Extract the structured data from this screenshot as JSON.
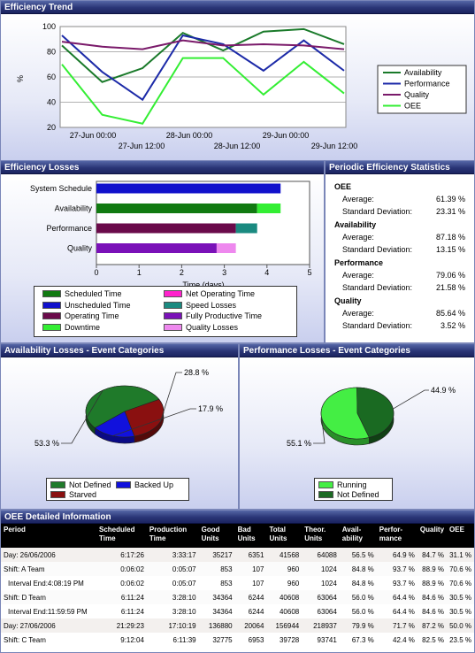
{
  "trend": {
    "title": "Efficiency Trend",
    "ylabel": "%",
    "yticks": [
      "100",
      "80",
      "60",
      "40",
      "20"
    ],
    "xticks_top": [
      "27-Jun 00:00",
      "28-Jun 00:00",
      "29-Jun 00:00"
    ],
    "xticks_bottom": [
      "27-Jun 12:00",
      "28-Jun 12:00",
      "29-Jun 12:00"
    ],
    "legend": [
      "Availability",
      "Performance",
      "Quality",
      "OEE"
    ],
    "chart_data": {
      "type": "line",
      "ylim": [
        20,
        100
      ],
      "x": [
        0,
        1,
        2,
        3,
        4,
        5,
        6,
        7
      ],
      "series": [
        {
          "name": "Availability",
          "color": "#1a7a2a",
          "values": [
            85,
            56,
            67,
            95,
            81,
            96,
            98,
            86
          ]
        },
        {
          "name": "Performance",
          "color": "#1c2aa8",
          "values": [
            93,
            64,
            42,
            93,
            86,
            65,
            89,
            65
          ]
        },
        {
          "name": "Quality",
          "color": "#7a1a6a",
          "values": [
            88,
            84,
            82,
            89,
            85,
            86,
            85,
            82
          ]
        },
        {
          "name": "OEE",
          "color": "#33ee33",
          "values": [
            70,
            30,
            23,
            75,
            75,
            46,
            72,
            47
          ]
        }
      ]
    }
  },
  "losses": {
    "title": "Efficiency Losses",
    "categories": [
      "System Schedule",
      "Availability",
      "Performance",
      "Quality"
    ],
    "xticks": [
      "0",
      "1",
      "2",
      "3",
      "4",
      "5"
    ],
    "xlabel": "Time (days)",
    "chart_data": {
      "type": "bar",
      "xlim": [
        0,
        5
      ],
      "stacks": [
        {
          "category": "System Schedule",
          "segments": [
            {
              "name": "Unscheduled Time",
              "value": 4.32
            }
          ]
        },
        {
          "category": "Availability",
          "segments": [
            {
              "name": "Scheduled Time",
              "value": 3.77
            },
            {
              "name": "Downtime",
              "value": 0.55
            }
          ]
        },
        {
          "category": "Performance",
          "segments": [
            {
              "name": "Operating Time",
              "value": 3.27
            },
            {
              "name": "Speed Losses",
              "value": 0.5
            }
          ]
        },
        {
          "category": "Quality",
          "segments": [
            {
              "name": "Fully Productive Time",
              "value": 2.82
            },
            {
              "name": "Quality Losses",
              "value": 0.45
            }
          ]
        }
      ]
    },
    "legend": [
      {
        "label": "Scheduled Time",
        "color": "#117a11"
      },
      {
        "label": "Net Operating Time",
        "color": "#ff22cc"
      },
      {
        "label": "Unscheduled Time",
        "color": "#1111cc"
      },
      {
        "label": "Speed Losses",
        "color": "#1a8a80"
      },
      {
        "label": "Operating Time",
        "color": "#6a0a4a"
      },
      {
        "label": "Fully Productive Time",
        "color": "#7a11b8"
      },
      {
        "label": "Downtime",
        "color": "#33ee33"
      },
      {
        "label": "Quality Losses",
        "color": "#ee88ee"
      }
    ]
  },
  "stats": {
    "title": "Periodic Efficiency Statistics",
    "sections": [
      {
        "name": "OEE",
        "avg_label": "Average:",
        "avg": "61.39 %",
        "sd_label": "Standard Deviation:",
        "sd": "23.31 %"
      },
      {
        "name": "Availability",
        "avg_label": "Average:",
        "avg": "87.18 %",
        "sd_label": "Standard Deviation:",
        "sd": "13.15 %"
      },
      {
        "name": "Performance",
        "avg_label": "Average:",
        "avg": "79.06 %",
        "sd_label": "Standard Deviation:",
        "sd": "21.58 %"
      },
      {
        "name": "Quality",
        "avg_label": "Average:",
        "avg": "85.64 %",
        "sd_label": "Standard Deviation:",
        "sd": "3.52 %"
      }
    ]
  },
  "avail_pie": {
    "title": "Availability Losses - Event Categories",
    "chart_data": {
      "type": "pie",
      "slices": [
        {
          "label": "Not Defined",
          "value": 53.3,
          "text": "53.3 %",
          "color": "#1f7a2a"
        },
        {
          "label": "Starved",
          "value": 28.8,
          "text": "28.8 %",
          "color": "#8a1010"
        },
        {
          "label": "Backed Up",
          "value": 17.9,
          "text": "17.9 %",
          "color": "#1111dd"
        }
      ]
    }
  },
  "perf_pie": {
    "title": "Performance Losses - Event Categories",
    "chart_data": {
      "type": "pie",
      "slices": [
        {
          "label": "Running",
          "value": 55.1,
          "text": "55.1 %",
          "color": "#44ee44"
        },
        {
          "label": "Not Defined",
          "value": 44.9,
          "text": "44.9 %",
          "color": "#1a6a22"
        }
      ]
    }
  },
  "detail": {
    "title": "OEE Detailed Information",
    "headers": [
      "Period",
      "Scheduled Time",
      "Production Time",
      "Good Units",
      "Bad Units",
      "Total Units",
      "Theor. Units",
      "Avail- ability",
      "Perfor- mance",
      "Quality",
      "OEE"
    ],
    "rows": [
      [
        "Day: 26/06/2006",
        "6:17:26",
        "3:33:17",
        "35217",
        "6351",
        "41568",
        "64088",
        "56.5 %",
        "64.9 %",
        "84.7 %",
        "31.1 %"
      ],
      [
        "Shift: A Team",
        "0:06:02",
        "0:05:07",
        "853",
        "107",
        "960",
        "1024",
        "84.8 %",
        "93.7 %",
        "88.9 %",
        "70.6 %"
      ],
      [
        "Interval End:4:08:19 PM",
        "0:06:02",
        "0:05:07",
        "853",
        "107",
        "960",
        "1024",
        "84.8 %",
        "93.7 %",
        "88.9 %",
        "70.6 %"
      ],
      [
        "Shift: D Team",
        "6:11:24",
        "3:28:10",
        "34364",
        "6244",
        "40608",
        "63064",
        "56.0 %",
        "64.4 %",
        "84.6 %",
        "30.5 %"
      ],
      [
        "Interval End:11:59:59 PM",
        "6:11:24",
        "3:28:10",
        "34364",
        "6244",
        "40608",
        "63064",
        "56.0 %",
        "64.4 %",
        "84.6 %",
        "30.5 %"
      ],
      [
        "Day: 27/06/2006",
        "21:29:23",
        "17:10:19",
        "136880",
        "20064",
        "156944",
        "218937",
        "79.9 %",
        "71.7 %",
        "87.2 %",
        "50.0 %"
      ],
      [
        "Shift: C Team",
        "9:12:04",
        "6:11:39",
        "32775",
        "6953",
        "39728",
        "93741",
        "67.3 %",
        "42.4 %",
        "82.5 %",
        "23.5 %"
      ]
    ]
  }
}
